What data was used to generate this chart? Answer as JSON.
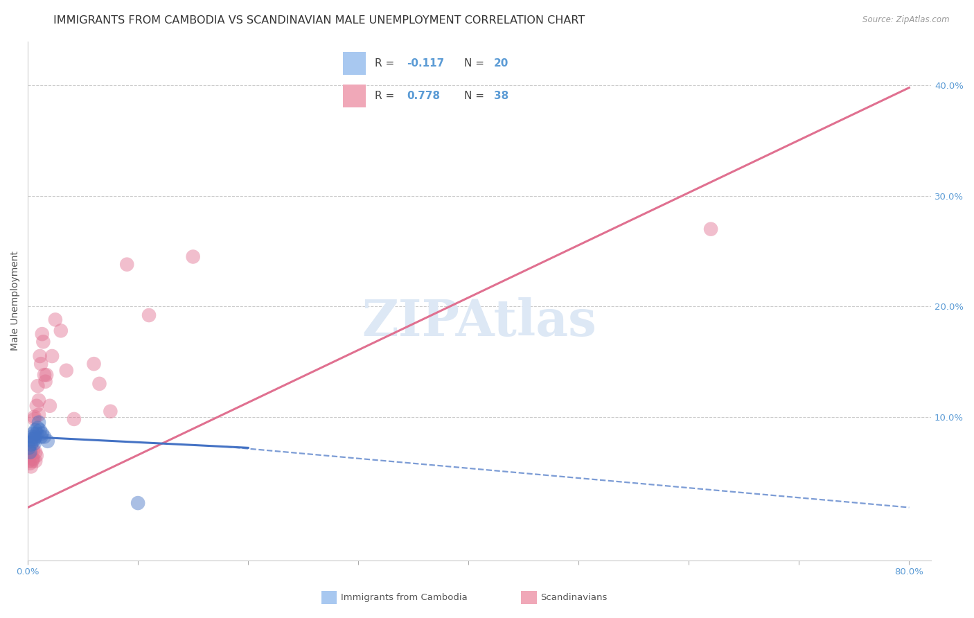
{
  "title": "IMMIGRANTS FROM CAMBODIA VS SCANDINAVIAN MALE UNEMPLOYMENT CORRELATION CHART",
  "source": "Source: ZipAtlas.com",
  "ylabel": "Male Unemployment",
  "xlim": [
    0.0,
    0.82
  ],
  "ylim": [
    -0.03,
    0.44
  ],
  "x_ticks": [
    0.0,
    0.1,
    0.2,
    0.3,
    0.4,
    0.5,
    0.6,
    0.7,
    0.8
  ],
  "y_ticks_right": [
    0.1,
    0.2,
    0.3,
    0.4
  ],
  "y_tick_labels_right": [
    "10.0%",
    "20.0%",
    "30.0%",
    "40.0%"
  ],
  "legend1_color": "#a8c8f0",
  "legend2_color": "#f0a8b8",
  "blue_color": "#4472c4",
  "pink_color": "#e07090",
  "watermark": "ZIPAtlas",
  "watermark_color": "#dde8f5",
  "scatter_blue": {
    "x": [
      0.001,
      0.002,
      0.003,
      0.004,
      0.004,
      0.005,
      0.005,
      0.006,
      0.006,
      0.007,
      0.007,
      0.008,
      0.009,
      0.01,
      0.011,
      0.012,
      0.013,
      0.015,
      0.018,
      0.1
    ],
    "y": [
      0.072,
      0.068,
      0.075,
      0.08,
      0.082,
      0.078,
      0.085,
      0.076,
      0.08,
      0.082,
      0.088,
      0.085,
      0.09,
      0.095,
      0.088,
      0.082,
      0.085,
      0.082,
      0.078,
      0.022
    ]
  },
  "scatter_pink": {
    "x": [
      0.001,
      0.002,
      0.002,
      0.003,
      0.003,
      0.004,
      0.004,
      0.005,
      0.005,
      0.006,
      0.006,
      0.007,
      0.007,
      0.008,
      0.008,
      0.009,
      0.01,
      0.01,
      0.011,
      0.012,
      0.013,
      0.014,
      0.015,
      0.016,
      0.017,
      0.02,
      0.022,
      0.025,
      0.03,
      0.035,
      0.042,
      0.06,
      0.065,
      0.075,
      0.09,
      0.11,
      0.15,
      0.62
    ],
    "y": [
      0.06,
      0.058,
      0.065,
      0.068,
      0.055,
      0.062,
      0.06,
      0.07,
      0.062,
      0.098,
      0.1,
      0.06,
      0.068,
      0.11,
      0.065,
      0.128,
      0.115,
      0.102,
      0.155,
      0.148,
      0.175,
      0.168,
      0.138,
      0.132,
      0.138,
      0.11,
      0.155,
      0.188,
      0.178,
      0.142,
      0.098,
      0.148,
      0.13,
      0.105,
      0.238,
      0.192,
      0.245,
      0.27
    ]
  },
  "blue_solid_line": {
    "x": [
      0.0,
      0.2
    ],
    "y": [
      0.082,
      0.072
    ]
  },
  "blue_dashed_line": {
    "x": [
      0.18,
      0.8
    ],
    "y": [
      0.073,
      0.018
    ]
  },
  "pink_line": {
    "x": [
      0.0,
      0.8
    ],
    "y": [
      0.018,
      0.398
    ]
  },
  "background_color": "#ffffff",
  "grid_color": "#cccccc",
  "title_fontsize": 11.5,
  "axis_label_fontsize": 10,
  "tick_fontsize": 9.5
}
